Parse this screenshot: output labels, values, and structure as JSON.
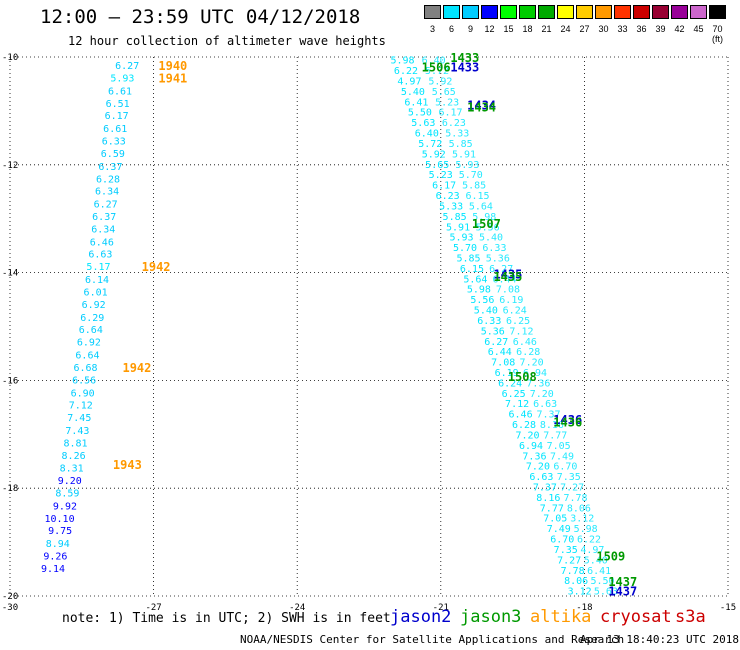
{
  "title": "12:00 – 23:59 UTC 04/12/2018",
  "subtitle": "12 hour collection of altimeter wave heights",
  "note": "note: 1) Time is in UTC; 2) SWH is in feet",
  "credit": "NOAA/NESDIS Center for Satellite Applications and Research",
  "timestamp": "Apr 13 18:40:23 UTC 2018",
  "satellites": [
    {
      "name": "jason2",
      "color": "#0000cc"
    },
    {
      "name": "jason3",
      "color": "#009900"
    },
    {
      "name": "altika",
      "color": "#ff9900"
    },
    {
      "name": "cryosat",
      "color": "#cc0000"
    },
    {
      "name": "s3a",
      "color": "#cc0000"
    }
  ],
  "colorbar": {
    "labels": [
      "3",
      "6",
      "9",
      "12",
      "15",
      "18",
      "21",
      "24",
      "27",
      "30",
      "33",
      "36",
      "39",
      "42",
      "45",
      "70 (ft)"
    ],
    "colors": [
      "#808080",
      "#00e5ff",
      "#00ccff",
      "#0000ff",
      "#00ff00",
      "#00cc00",
      "#00aa00",
      "#ffff00",
      "#ffcc00",
      "#ff9900",
      "#ff3300",
      "#cc0000",
      "#990033",
      "#990099",
      "#cc66cc",
      "#000000"
    ]
  },
  "chart_data": {
    "type": "scatter",
    "title": "12:00 – 23:59 UTC 04/12/2018",
    "subtitle": "12 hour collection of altimeter wave heights",
    "xlim": [
      -30,
      -15
    ],
    "ylim": [
      -20,
      -10
    ],
    "x_ticks": [
      "-30",
      "-27",
      "-24",
      "-21",
      "-18",
      "-15"
    ],
    "y_ticks": [
      "-10",
      "-12",
      "-14",
      "-16",
      "-18",
      "-20"
    ],
    "grid": true,
    "tracks": [
      {
        "name": "altika track",
        "points": [
          {
            "lon": -27.3,
            "lat": -10.15,
            "value": "6.27"
          },
          {
            "lon": -27.4,
            "lat": -10.38,
            "value": "5.93"
          },
          {
            "lon": -27.45,
            "lat": -10.62,
            "value": "6.61"
          },
          {
            "lon": -27.5,
            "lat": -10.85,
            "value": "6.51"
          },
          {
            "lon": -27.52,
            "lat": -11.08,
            "value": "6.17"
          },
          {
            "lon": -27.55,
            "lat": -11.32,
            "value": "6.61"
          },
          {
            "lon": -27.58,
            "lat": -11.55,
            "value": "6.33"
          },
          {
            "lon": -27.6,
            "lat": -11.78,
            "value": "6.59"
          },
          {
            "lon": -27.65,
            "lat": -12.02,
            "value": "6.37"
          },
          {
            "lon": -27.7,
            "lat": -12.25,
            "value": "6.28"
          },
          {
            "lon": -27.72,
            "lat": -12.48,
            "value": "6.34"
          },
          {
            "lon": -27.75,
            "lat": -12.72,
            "value": "6.27"
          },
          {
            "lon": -27.78,
            "lat": -12.95,
            "value": "6.37"
          },
          {
            "lon": -27.8,
            "lat": -13.18,
            "value": "6.34"
          },
          {
            "lon": -27.83,
            "lat": -13.42,
            "value": "6.46"
          },
          {
            "lon": -27.86,
            "lat": -13.65,
            "value": "6.63"
          },
          {
            "lon": -27.9,
            "lat": -13.88,
            "value": "5.17"
          },
          {
            "lon": -27.93,
            "lat": -14.12,
            "value": "6.14"
          },
          {
            "lon": -27.96,
            "lat": -14.35,
            "value": "6.01"
          },
          {
            "lon": -28.0,
            "lat": -14.58,
            "value": "6.92"
          },
          {
            "lon": -28.03,
            "lat": -14.82,
            "value": "6.29"
          },
          {
            "lon": -28.06,
            "lat": -15.05,
            "value": "6.64"
          },
          {
            "lon": -28.1,
            "lat": -15.28,
            "value": "6.92"
          },
          {
            "lon": -28.13,
            "lat": -15.52,
            "value": "6.64"
          },
          {
            "lon": -28.17,
            "lat": -15.75,
            "value": "6.68"
          },
          {
            "lon": -28.2,
            "lat": -15.98,
            "value": "6.56"
          },
          {
            "lon": -28.23,
            "lat": -16.22,
            "value": "6.90"
          },
          {
            "lon": -28.27,
            "lat": -16.45,
            "value": "7.12"
          },
          {
            "lon": -28.3,
            "lat": -16.68,
            "value": "7.45"
          },
          {
            "lon": -28.34,
            "lat": -16.92,
            "value": "7.43"
          },
          {
            "lon": -28.38,
            "lat": -17.15,
            "value": "8.81"
          },
          {
            "lon": -28.42,
            "lat": -17.38,
            "value": "8.26"
          },
          {
            "lon": -28.46,
            "lat": -17.62,
            "value": "8.31"
          },
          {
            "lon": -28.5,
            "lat": -17.85,
            "value": "9.20"
          },
          {
            "lon": -28.55,
            "lat": -18.08,
            "value": "8.59"
          },
          {
            "lon": -28.6,
            "lat": -18.32,
            "value": "9.92"
          },
          {
            "lon": -28.65,
            "lat": -18.55,
            "value": "10.10"
          },
          {
            "lon": -28.7,
            "lat": -18.78,
            "value": "9.75"
          },
          {
            "lon": -28.75,
            "lat": -19.02,
            "value": "8.94"
          },
          {
            "lon": -28.8,
            "lat": -19.25,
            "value": "9.26"
          },
          {
            "lon": -28.85,
            "lat": -19.48,
            "value": "9.14"
          }
        ]
      }
    ],
    "time_labels": [
      {
        "text": "1940",
        "lon": -26.9,
        "lat": -10.15,
        "satellite": "altika"
      },
      {
        "text": "1941",
        "lon": -26.9,
        "lat": -10.38,
        "satellite": "altika"
      },
      {
        "text": "1942",
        "lon": -27.25,
        "lat": -13.88,
        "satellite": "altika"
      },
      {
        "text": "1942",
        "lon": -27.65,
        "lat": -15.75,
        "satellite": "altika"
      },
      {
        "text": "1943",
        "lon": -27.85,
        "lat": -17.55,
        "satellite": "altika"
      },
      {
        "text": "1433",
        "lon": -20.8,
        "lat": -10.0,
        "satellite": "jason3"
      },
      {
        "text": "1506",
        "lon": -21.4,
        "lat": -10.18,
        "satellite": "jason3"
      },
      {
        "text": "1433",
        "lon": -20.8,
        "lat": -10.18,
        "satellite": "jason2"
      },
      {
        "text": "1434",
        "lon": -20.45,
        "lat": -10.88,
        "satellite": "jason2"
      },
      {
        "text": "1434",
        "lon": -20.45,
        "lat": -10.92,
        "satellite": "jason3"
      },
      {
        "text": "1507",
        "lon": -20.35,
        "lat": -13.08,
        "satellite": "jason3"
      },
      {
        "text": "1435",
        "lon": -19.9,
        "lat": -14.02,
        "satellite": "jason2"
      },
      {
        "text": "1435",
        "lon": -19.9,
        "lat": -14.06,
        "satellite": "jason3"
      },
      {
        "text": "1508",
        "lon": -19.6,
        "lat": -15.92,
        "satellite": "jason3"
      },
      {
        "text": "1436",
        "lon": -18.65,
        "lat": -16.72,
        "satellite": "jason2"
      },
      {
        "text": "1436",
        "lon": -18.65,
        "lat": -16.76,
        "satellite": "jason3"
      },
      {
        "text": "1509",
        "lon": -17.75,
        "lat": -19.25,
        "satellite": "jason3"
      },
      {
        "text": "1437",
        "lon": -17.5,
        "lat": -19.72,
        "satellite": "jason3"
      },
      {
        "text": "1437",
        "lon": -17.5,
        "lat": -19.9,
        "satellite": "jason2"
      }
    ],
    "dense_tracks_values": [
      "5.98",
      "6.22",
      "4.97",
      "5.40",
      "6.41",
      "5.50",
      "5.63",
      "6.40",
      "5.72",
      "5.92",
      "5.65",
      "5.23",
      "6.17",
      "6.23",
      "5.33",
      "5.85",
      "5.91",
      "5.93",
      "5.70",
      "5.85",
      "6.15",
      "5.64",
      "5.98",
      "5.56",
      "5.40",
      "6.33",
      "5.36",
      "6.27",
      "6.44",
      "7.08",
      "6.19",
      "6.24",
      "6.25",
      "7.12",
      "6.46",
      "6.28",
      "7.20",
      "6.94",
      "7.36",
      "7.20",
      "6.63",
      "7.37",
      "8.16",
      "7.77",
      "7.05",
      "7.49",
      "6.70",
      "7.35",
      "7.27",
      "7.78",
      "8.06",
      "3.12"
    ]
  }
}
